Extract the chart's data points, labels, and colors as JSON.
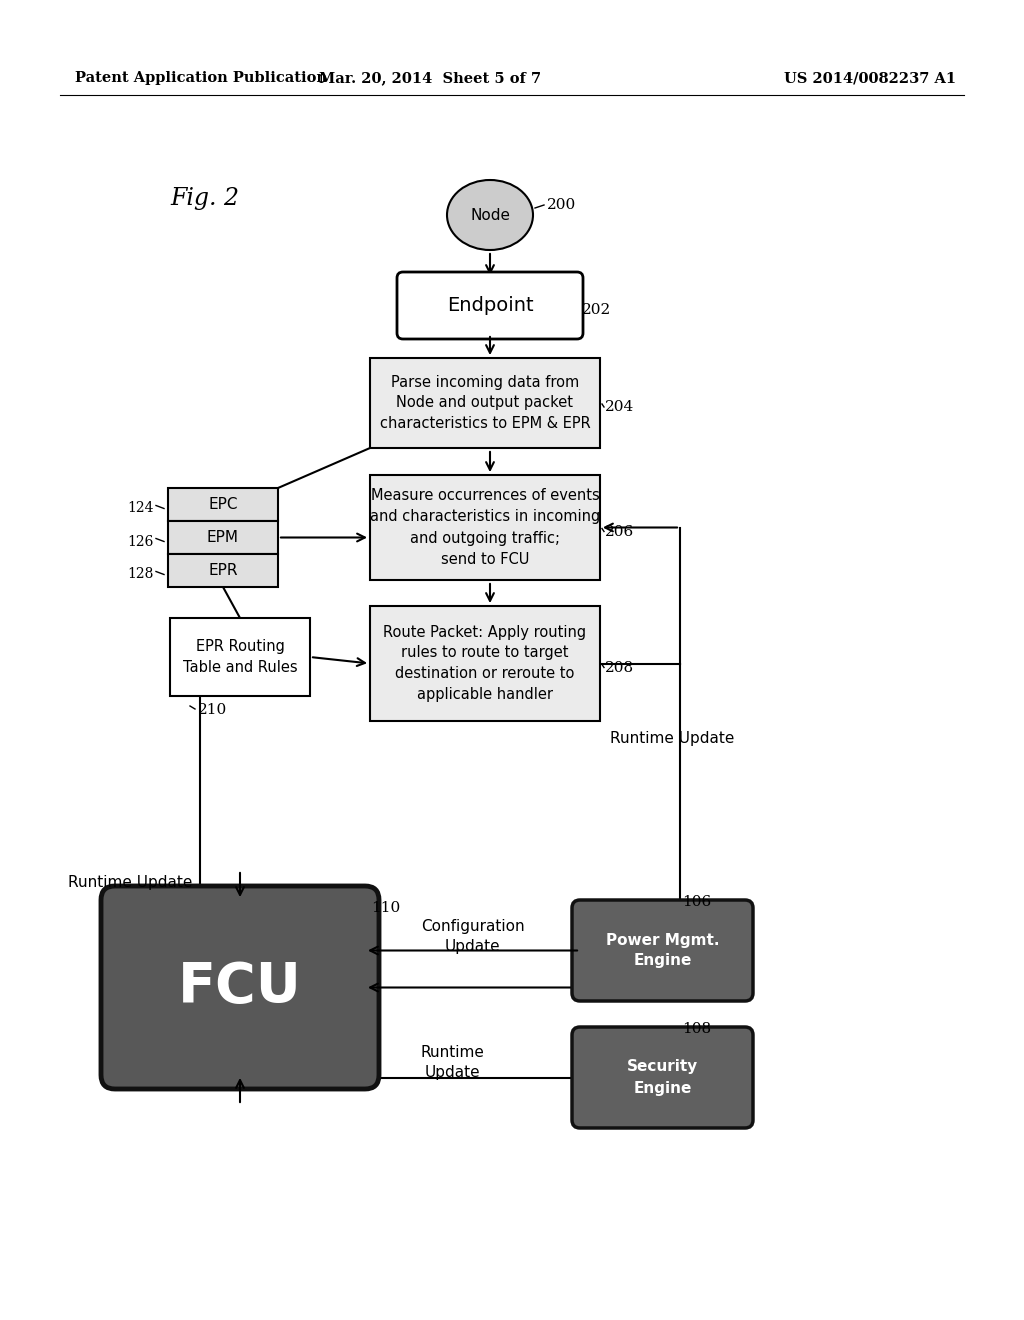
{
  "bg_color": "#ffffff",
  "header_left": "Patent Application Publication",
  "header_mid": "Mar. 20, 2014  Sheet 5 of 7",
  "header_right": "US 2014/0082237 A1",
  "fig_label": "Fig. 2",
  "node_label": "Node",
  "node_ref": "200",
  "endpoint_label": "Endpoint",
  "endpoint_ref": "202",
  "box204_text": "Parse incoming data from\nNode and output packet\ncharacteristics to EPM & EPR",
  "box204_ref": "204",
  "box206_text": "Measure occurrences of events\nand characteristics in incoming\nand outgoing traffic;\nsend to FCU",
  "box206_ref": "206",
  "box208_text": "Route Packet: Apply routing\nrules to route to target\ndestination or reroute to\napplicable handler",
  "box208_ref": "208",
  "epc_label": "EPC",
  "epc_ref": "124",
  "epm_label": "EPM",
  "epm_ref": "126",
  "epr_label": "EPR",
  "epr_ref": "128",
  "epr_routing_text": "EPR Routing\nTable and Rules",
  "epr_routing_ref": "210",
  "fcu_label": "FCU",
  "fcu_ref": "110",
  "power_mgmt_text": "Power Mgmt.\nEngine",
  "power_mgmt_ref": "106",
  "security_text": "Security\nEngine",
  "security_ref": "108",
  "runtime_update_left": "Runtime Update",
  "runtime_update_right": "Runtime Update",
  "config_update": "Configuration\nUpdate"
}
